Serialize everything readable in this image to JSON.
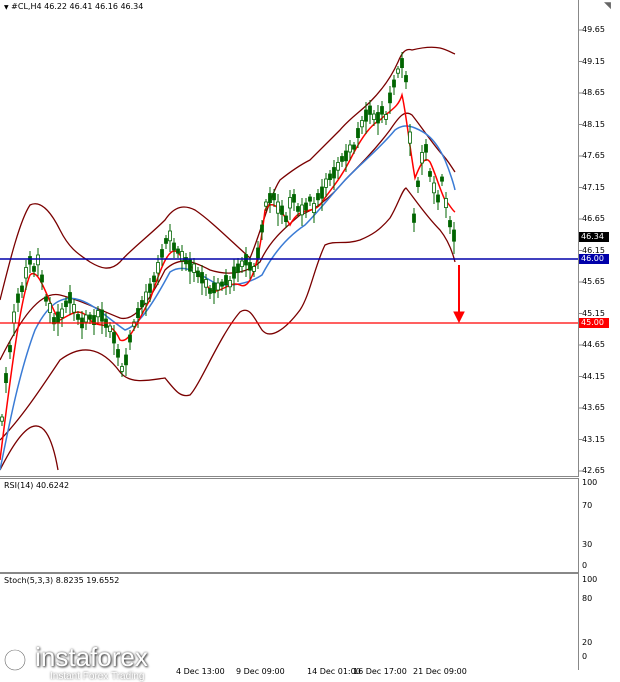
{
  "chart_header": {
    "title": "#CL,H4  46.22 46.41 46.16 46.34",
    "menu_glyph": "▼"
  },
  "price_axis": {
    "ticks": [
      "49.65",
      "49.15",
      "48.65",
      "48.15",
      "47.65",
      "47.15",
      "46.65",
      "46.15",
      "45.65",
      "45.15",
      "44.65",
      "44.15",
      "43.65",
      "43.15",
      "42.65"
    ],
    "current_price": "46.34",
    "level_support": "46.00",
    "level_target": "45.00"
  },
  "rsi_panel": {
    "header": "RSI(14) 40.6242",
    "ticks": [
      "100",
      "70",
      "30",
      "0"
    ]
  },
  "stoch_panel": {
    "header": "Stoch(5,3,3) 8.8235 19.6552",
    "ticks": [
      "100",
      "80",
      "20",
      "0"
    ]
  },
  "time_axis": {
    "labels": [
      "4 Dec 13:00",
      "9 Dec 09:00",
      "14 Dec 01:00",
      "16 Dec 17:00",
      "21 Dec 09:00"
    ]
  },
  "branding": {
    "name": "instaforex",
    "tagline": "Instant Forex Trading"
  },
  "colors": {
    "support_line": "#0000aa",
    "target_line": "#ff0000",
    "bollinger": "#7a0000",
    "ma_fast": "#ff0000",
    "ma_slow": "#3a7bd5",
    "candle": "#006400",
    "rsi_line": "#3a7bd5",
    "stoch_main": "#3a7bd5",
    "stoch_signal": "#ff0000",
    "arrow": "#ff0000"
  },
  "chart_data": {
    "type": "candlestick",
    "symbol": "#CL",
    "timeframe": "H4",
    "last_bar": {
      "open": 46.22,
      "high": 46.41,
      "low": 46.16,
      "close": 46.34
    },
    "ylim": [
      42.65,
      49.9
    ],
    "horizontal_levels": [
      46.0,
      45.0
    ],
    "forecast_arrow": {
      "from": 45.9,
      "to": 45.0
    },
    "rsi": {
      "period": 14,
      "value": 40.6242,
      "levels": [
        70,
        30
      ]
    },
    "stochastic": {
      "params": "5,3,3",
      "main": 8.8235,
      "signal": 19.6552,
      "levels": [
        80,
        20
      ]
    }
  }
}
